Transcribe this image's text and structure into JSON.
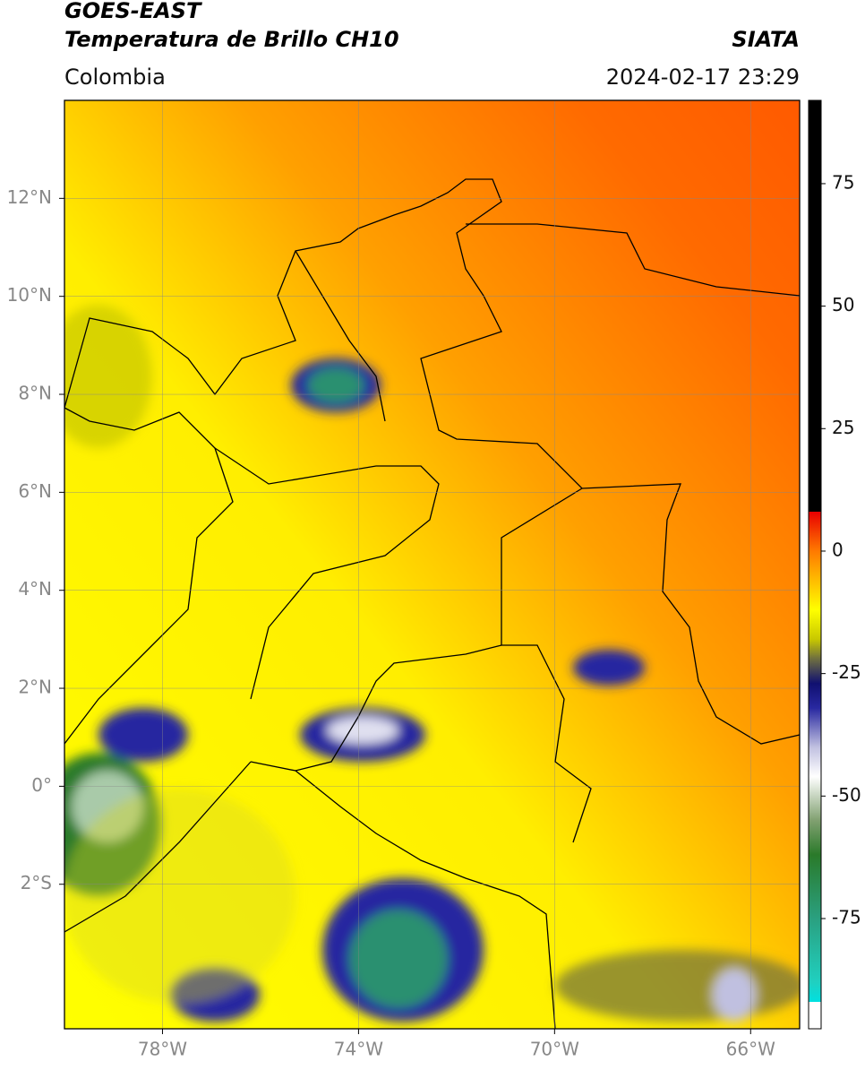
{
  "chart_data": {
    "type": "map",
    "title": "GOES-EAST",
    "subtitle": "Temperatura de Brillo CH10",
    "source": "SIATA",
    "region": "Colombia",
    "datetime": "2024-02-17 23:29",
    "xlim": [
      -80,
      -65
    ],
    "ylim": [
      -4.95,
      14
    ],
    "xticks": [
      {
        "value": -78,
        "label": "78°W"
      },
      {
        "value": -74,
        "label": "74°W"
      },
      {
        "value": -70,
        "label": "70°W"
      },
      {
        "value": -66,
        "label": "66°W"
      }
    ],
    "yticks": [
      {
        "value": 12,
        "label": "12°N"
      },
      {
        "value": 10,
        "label": "10°N"
      },
      {
        "value": 8,
        "label": "8°N"
      },
      {
        "value": 6,
        "label": "6°N"
      },
      {
        "value": 4,
        "label": "4°N"
      },
      {
        "value": 2,
        "label": "2°N"
      },
      {
        "value": 0,
        "label": "0°"
      },
      {
        "value": -2,
        "label": "2°S"
      }
    ],
    "grid": true,
    "colorbar": {
      "lim": [
        -97.5,
        92
      ],
      "ticks": [
        75,
        50,
        25,
        0,
        -25,
        -50,
        -75
      ],
      "stops": [
        {
          "value": 92,
          "color": "#000000"
        },
        {
          "value": 8,
          "color": "#000000"
        },
        {
          "value": 8,
          "color": "#e80000"
        },
        {
          "value": 0,
          "color": "#ff7a00"
        },
        {
          "value": -12,
          "color": "#ffff00"
        },
        {
          "value": -18,
          "color": "#c8c800"
        },
        {
          "value": -22,
          "color": "#6e6e40"
        },
        {
          "value": -27,
          "color": "#101070"
        },
        {
          "value": -32,
          "color": "#2828a0"
        },
        {
          "value": -40,
          "color": "#c0c0e0"
        },
        {
          "value": -46,
          "color": "#ffffff"
        },
        {
          "value": -55,
          "color": "#80a070"
        },
        {
          "value": -62,
          "color": "#2a7a2a"
        },
        {
          "value": -75,
          "color": "#2aa080"
        },
        {
          "value": -88,
          "color": "#20d0c0"
        },
        {
          "value": -92,
          "color": "#00e0e0"
        },
        {
          "value": -92,
          "color": "#ffffff"
        },
        {
          "value": -97.5,
          "color": "#ffffff"
        }
      ]
    }
  }
}
